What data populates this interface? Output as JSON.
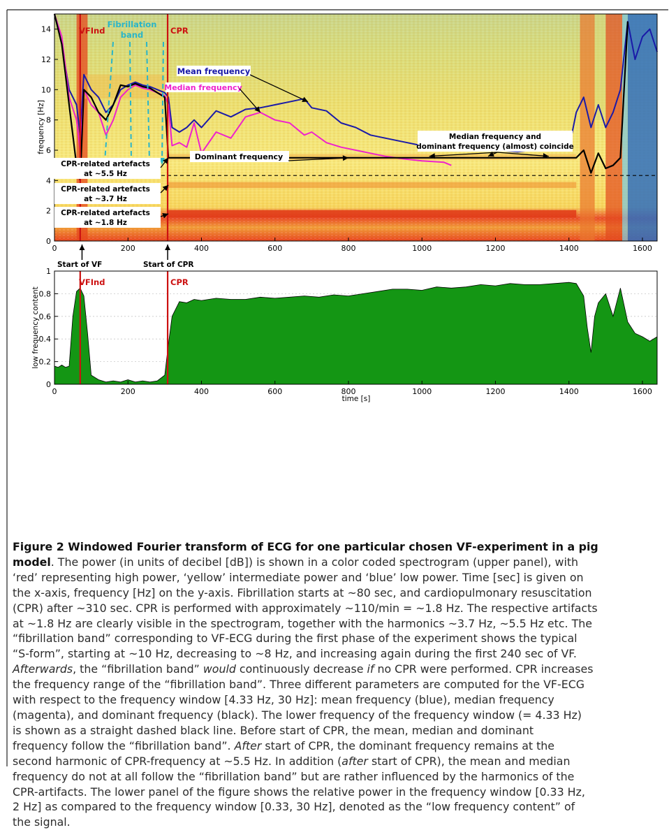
{
  "figure": {
    "upper_panel": {
      "ylabel": "frequency [Hz]",
      "y_ticks": [
        "0",
        "2",
        "4",
        "6",
        "8",
        "10",
        "12",
        "14"
      ],
      "x_ticks": [
        "200",
        "400",
        "600",
        "800",
        "1000",
        "1200",
        "1400",
        "1600"
      ],
      "x_tick_zero": "0",
      "vfind_label": "VFInd",
      "cpr_label": "CPR",
      "fibrillation_band_label": [
        "Fibrillation",
        "band"
      ],
      "mean_freq_label": "Mean frequency",
      "median_freq_label": "Median frequency",
      "dominant_freq_label": "Dominant frequency",
      "coincide_label": [
        "Median frequency and",
        "dominant frequency (almost) coincide"
      ],
      "artefact_labels": [
        [
          "CPR-related artefacts",
          "at ~5.5 Hz"
        ],
        [
          "CPR-related artefacts",
          "at ~3.7 Hz"
        ],
        [
          "CPR-related artefacts",
          "at ~1.8 Hz"
        ]
      ],
      "start_vf_label": "Start of VF",
      "start_cpr_label": "Start of CPR",
      "colors": {
        "mean": "#1a1aa8",
        "median": "#ee22cc",
        "dominant": "#000000",
        "vfind_line": "#cc1111",
        "fib_arrow": "#2ab5c8",
        "area": "#149614"
      }
    },
    "lower_panel": {
      "ylabel": "low frequency content",
      "xlabel": "time [s]",
      "y_ticks": [
        "0",
        "0.2",
        "0.4",
        "0.6",
        "0.8",
        "1"
      ],
      "x_ticks": [
        "0",
        "200",
        "400",
        "600",
        "800",
        "1000",
        "1200",
        "1400",
        "1600"
      ],
      "vfind_label": "VFInd",
      "cpr_label": "CPR"
    }
  },
  "caption": {
    "title": "Figure 2 Windowed Fourier transform of ECG for one particular chosen VF-experiment in a pig model",
    "lines": [
      "model. The power (in units of decibel [dB]) is shown in a color coded spectrogram (upper panel), with",
      "‘red’ representing high power, ‘yellow’ intermediate power and ‘blue’ low power. Time [sec] is given on",
      "the x-axis, frequency [Hz] on the y-axis. Fibrillation starts at ~80 sec, and cardiopulmonary resuscitation",
      "(CPR) after ~310 sec. CPR is performed with approximately ~110/min = ~1.8 Hz. The respective artifacts",
      "at ~1.8 Hz are clearly visible in the spectrogram, together with the harmonics ~3.7 Hz, ~5.5 Hz etc. The",
      "“fibrillation band” corresponding to VF-ECG during the first phase of the experiment shows the typical",
      "“S-form”, starting at ~10 Hz, decreasing to ~8 Hz, and increasing again during the first 240 sec of VF.",
      "Afterwards, the “fibrillation band” would continuously decrease if no CPR were performed. CPR increases",
      "the frequency range of the “fibrillation band”. Three different parameters are computed for the VF-ECG",
      "with respect to the frequency window [4.33 Hz, 30 Hz]: mean frequency (blue), median frequency",
      "(magenta), and dominant frequency (black). The lower frequency of the frequency window (= 4.33 Hz)",
      "is shown as a straight dashed black line. Before start of CPR, the mean, median and dominant",
      "frequency follow the “fibrillation band”. After start of CPR, the dominant frequency remains at the",
      "second harmonic of CPR-frequency at ~5.5 Hz. In addition (after start of CPR), the mean and median",
      "frequency do not at all follow the “fibrillation band” but are rather influenced by the harmonics of the",
      "CPR-artifacts. The lower panel of the figure shows the relative power in the frequency window [0.33 Hz,",
      "2 Hz] as compared to the frequency window [0.33, 30 Hz], denoted as the “low frequency content” of",
      "the signal."
    ]
  },
  "chart_data": [
    {
      "type": "line",
      "panel": "upper spectrogram",
      "ylabel": "frequency [Hz]",
      "xlim": [
        0,
        1640
      ],
      "ylim": [
        0,
        15
      ],
      "x_ticks": [
        0,
        200,
        400,
        600,
        800,
        1000,
        1200,
        1400,
        1600
      ],
      "y_ticks": [
        0,
        2,
        4,
        6,
        8,
        10,
        12,
        14
      ],
      "dashed_line_y": 4.33,
      "vertical_lines_x": [
        70,
        308
      ],
      "series": [
        {
          "name": "Mean frequency",
          "x": [
            0,
            20,
            40,
            60,
            70,
            80,
            100,
            120,
            140,
            160,
            180,
            200,
            220,
            240,
            260,
            280,
            300,
            310,
            320,
            340,
            360,
            380,
            400,
            440,
            480,
            520,
            560,
            600,
            640,
            680,
            700,
            740,
            780,
            820,
            860,
            900,
            960,
            1000,
            1060,
            1100,
            1160,
            1200,
            1260,
            1300,
            1360,
            1400,
            1420,
            1440,
            1460,
            1480,
            1500,
            1520,
            1540,
            1560,
            1580,
            1600,
            1620,
            1640
          ],
          "y": [
            15,
            13,
            10,
            9,
            7,
            11,
            10,
            9.5,
            8.5,
            9,
            10,
            10.3,
            10.5,
            10.3,
            10.2,
            10.0,
            9.8,
            9.5,
            7.5,
            7.2,
            7.5,
            8.0,
            7.5,
            8.6,
            8.2,
            8.7,
            8.8,
            9.0,
            9.2,
            9.4,
            8.8,
            8.6,
            7.8,
            7.5,
            7.0,
            6.8,
            6.5,
            6.3,
            6.2,
            6.1,
            6.0,
            6.0,
            5.9,
            6.0,
            6.0,
            6.1,
            8.5,
            9.5,
            7.5,
            9.0,
            7.5,
            8.5,
            10.0,
            14.5,
            12.0,
            13.5,
            14.0,
            12.5
          ]
        },
        {
          "name": "Median frequency",
          "x": [
            0,
            20,
            40,
            60,
            70,
            80,
            100,
            120,
            140,
            160,
            180,
            200,
            220,
            240,
            260,
            280,
            300,
            310,
            320,
            340,
            360,
            380,
            400,
            440,
            480,
            520,
            560,
            600,
            640,
            680,
            700,
            740,
            780,
            820,
            860,
            900,
            960,
            1000,
            1060,
            1080
          ],
          "y": [
            15,
            13.5,
            9.5,
            8,
            6,
            10,
            9,
            8.5,
            7,
            8,
            9.5,
            10,
            10.3,
            10.1,
            10.0,
            9.8,
            9.6,
            9.0,
            6.3,
            6.5,
            6.2,
            7.8,
            5.8,
            7.2,
            6.8,
            8.2,
            8.5,
            8.0,
            7.8,
            7.0,
            7.2,
            6.5,
            6.2,
            6.0,
            5.8,
            5.6,
            5.4,
            5.3,
            5.2,
            5.0
          ]
        },
        {
          "name": "Dominant frequency",
          "x": [
            0,
            20,
            40,
            60,
            70,
            80,
            100,
            120,
            140,
            160,
            180,
            200,
            220,
            240,
            260,
            280,
            300,
            310,
            320,
            1420,
            1440,
            1460,
            1480,
            1500,
            1520,
            1540,
            1560
          ],
          "y": [
            15,
            13,
            9,
            5,
            4,
            10,
            9.5,
            8.5,
            8,
            9,
            10.3,
            10.2,
            10.4,
            10.2,
            10.1,
            9.8,
            9.5,
            5.5,
            5.5,
            5.5,
            6.0,
            4.5,
            5.8,
            4.8,
            5.0,
            5.5,
            14.5
          ]
        }
      ]
    },
    {
      "type": "area",
      "panel": "lower",
      "ylabel": "low frequency content",
      "xlabel": "time [s]",
      "xlim": [
        0,
        1640
      ],
      "ylim": [
        0,
        1
      ],
      "x_ticks": [
        0,
        200,
        400,
        600,
        800,
        1000,
        1200,
        1400,
        1600
      ],
      "y_ticks": [
        0,
        0.2,
        0.4,
        0.6,
        0.8,
        1
      ],
      "vertical_lines_x": [
        70,
        308
      ],
      "series": [
        {
          "name": "",
          "x": [
            0,
            10,
            20,
            30,
            40,
            50,
            60,
            70,
            80,
            90,
            100,
            120,
            140,
            160,
            180,
            200,
            220,
            240,
            260,
            280,
            300,
            310,
            320,
            340,
            360,
            380,
            400,
            440,
            480,
            520,
            560,
            600,
            640,
            680,
            720,
            760,
            800,
            840,
            880,
            920,
            960,
            1000,
            1040,
            1080,
            1120,
            1160,
            1200,
            1240,
            1280,
            1320,
            1360,
            1400,
            1420,
            1440,
            1450,
            1460,
            1470,
            1480,
            1500,
            1520,
            1540,
            1560,
            1580,
            1600,
            1620,
            1640
          ],
          "y": [
            0.16,
            0.15,
            0.17,
            0.15,
            0.16,
            0.6,
            0.82,
            0.85,
            0.78,
            0.45,
            0.08,
            0.04,
            0.02,
            0.03,
            0.02,
            0.04,
            0.02,
            0.03,
            0.02,
            0.03,
            0.08,
            0.35,
            0.6,
            0.73,
            0.72,
            0.75,
            0.74,
            0.76,
            0.75,
            0.75,
            0.77,
            0.76,
            0.77,
            0.78,
            0.77,
            0.79,
            0.78,
            0.8,
            0.82,
            0.84,
            0.84,
            0.83,
            0.86,
            0.85,
            0.86,
            0.88,
            0.87,
            0.89,
            0.88,
            0.88,
            0.89,
            0.9,
            0.89,
            0.78,
            0.5,
            0.28,
            0.6,
            0.72,
            0.8,
            0.6,
            0.85,
            0.55,
            0.45,
            0.42,
            0.38,
            0.42
          ]
        }
      ]
    }
  ]
}
